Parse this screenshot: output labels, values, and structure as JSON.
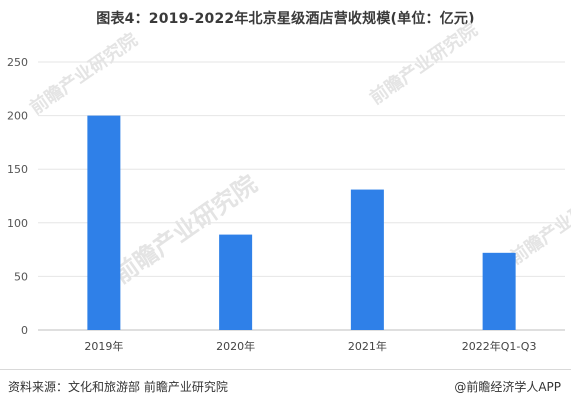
{
  "title": "图表4：2019-2022年北京星级酒店营收规模(单位：亿元)",
  "watermark": "前瞻产业研究院",
  "source": "资料来源：文化和旅游部 前瞻产业研究院",
  "brand": "@前瞻经济学人APP",
  "chart_data": {
    "type": "bar",
    "title": "图表4：2019-2022年北京星级酒店营收规模(单位：亿元)",
    "xlabel": "",
    "ylabel": "",
    "categories": [
      "2019年",
      "2020年",
      "2021年",
      "2022年Q1-Q3"
    ],
    "values": [
      200,
      89,
      131,
      72
    ],
    "ylim": [
      0,
      250
    ],
    "yticks": [
      0,
      50,
      100,
      150,
      200,
      250
    ],
    "bar_color": "#2f80e8",
    "grid": true,
    "legend": "none"
  }
}
